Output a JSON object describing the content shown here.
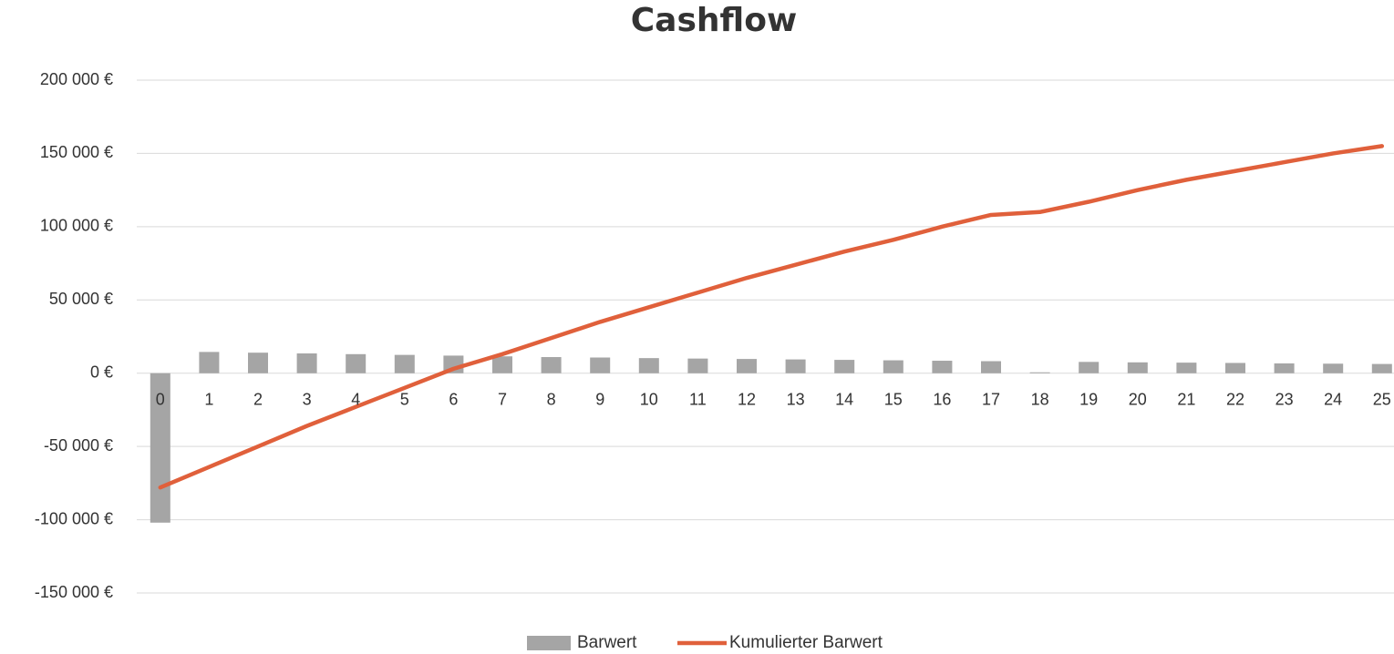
{
  "chart_data": {
    "type": "bar-line",
    "title": "Cashflow",
    "categories": [
      "0",
      "1",
      "2",
      "3",
      "4",
      "5",
      "6",
      "7",
      "8",
      "9",
      "10",
      "11",
      "12",
      "13",
      "14",
      "15",
      "16",
      "17",
      "18",
      "19",
      "20",
      "21",
      "22",
      "23",
      "24",
      "25"
    ],
    "series": [
      {
        "name": "Barwert",
        "type": "bar",
        "color": "#a5a5a5",
        "values": [
          -102000,
          14500,
          14000,
          13500,
          13000,
          12500,
          12000,
          11500,
          11000,
          10700,
          10300,
          10000,
          9700,
          9400,
          9100,
          8800,
          8500,
          8200,
          600,
          7700,
          7400,
          7200,
          7000,
          6700,
          6500,
          6300
        ]
      },
      {
        "name": "Kumulierter Barwert",
        "type": "line",
        "color": "#e0603b",
        "values": [
          -78000,
          -64000,
          -50000,
          -36000,
          -23000,
          -10000,
          3000,
          13000,
          24000,
          35000,
          45000,
          55000,
          65000,
          74000,
          83000,
          91000,
          100000,
          108000,
          110000,
          117000,
          125000,
          132000,
          138000,
          144000,
          150000,
          155000
        ]
      }
    ],
    "ylim": [
      -175000,
      200000
    ],
    "yticks": [
      {
        "value": -150000,
        "label": "-150 000 €"
      },
      {
        "value": -100000,
        "label": "-100 000 €"
      },
      {
        "value": -50000,
        "label": "-50 000 €"
      },
      {
        "value": 0,
        "label": "0 €"
      },
      {
        "value": 50000,
        "label": "50 000 €"
      },
      {
        "value": 100000,
        "label": "100 000 €"
      },
      {
        "value": 150000,
        "label": "150 000 €"
      },
      {
        "value": 200000,
        "label": "200 000 €"
      }
    ],
    "grid": true,
    "legend": "bottom"
  }
}
